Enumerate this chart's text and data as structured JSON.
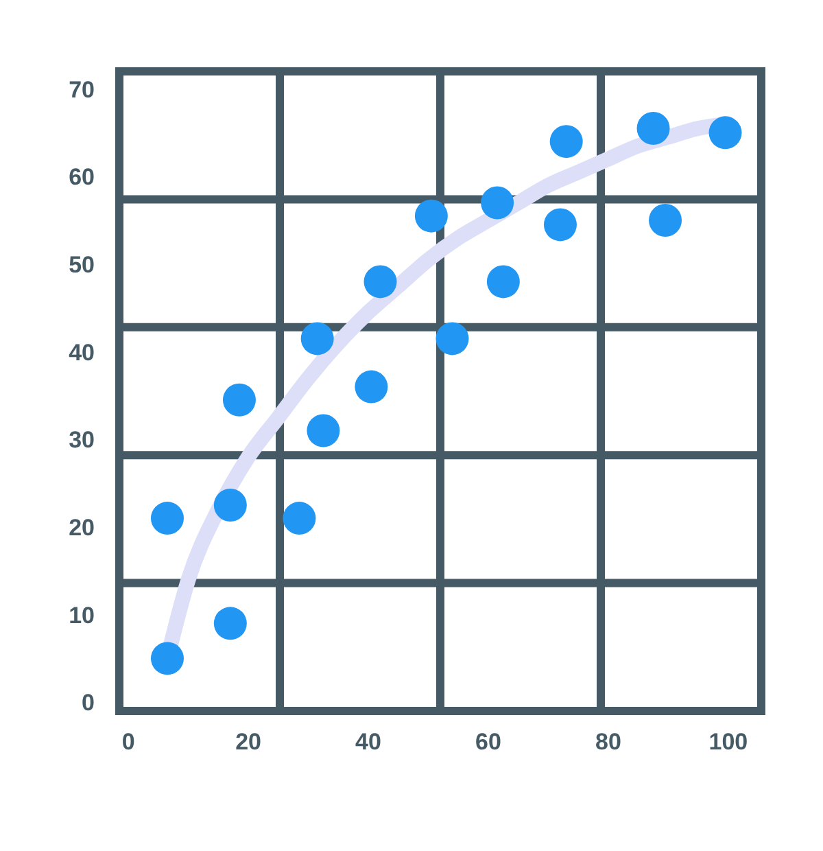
{
  "chart_data": {
    "type": "scatter",
    "series": [
      {
        "type": "line",
        "color": "#dcdff7",
        "marker": "none",
        "x": [
          6.5,
          10,
          15,
          20,
          25,
          30,
          35,
          40,
          45,
          50,
          55,
          60,
          65,
          70,
          75,
          80,
          85,
          90,
          95,
          100
        ],
        "values": [
          5,
          14,
          22,
          28,
          32.5,
          37,
          41,
          44.5,
          47.5,
          50.5,
          53,
          55,
          57,
          59,
          60.5,
          62,
          63.5,
          64.5,
          65.5,
          66
        ]
      },
      {
        "color": "#2196f3",
        "marker": "circle",
        "x": [
          6.5,
          6.5,
          17,
          17,
          18.5,
          28.5,
          31.5,
          32.5,
          40.5,
          42,
          50.5,
          54,
          61.5,
          62.5,
          72,
          73,
          87.5,
          89.5,
          99.5
        ],
        "values": [
          5,
          21,
          9,
          22.5,
          34.5,
          21,
          41.5,
          31,
          36,
          48,
          55.5,
          41.5,
          57,
          48,
          54.5,
          64,
          65.5,
          55,
          65
        ]
      }
    ],
    "xlim": [
      -1.5,
      105.5
    ],
    "ylim": [
      -1,
      72
    ],
    "xticks": [
      0,
      20,
      {
        "value": 25.25,
        "label": null
      },
      40,
      {
        "value": 52,
        "label": null
      },
      60,
      {
        "value": 78.75,
        "label": null
      },
      80,
      100
    ],
    "yticks": [
      0,
      10,
      {
        "value": 13.6,
        "label": null
      },
      20,
      {
        "value": 28.2,
        "label": null
      },
      30,
      40,
      {
        "value": 42.8,
        "label": null
      },
      50,
      {
        "value": 57.4,
        "label": null
      },
      60,
      70
    ],
    "grid": true
  }
}
